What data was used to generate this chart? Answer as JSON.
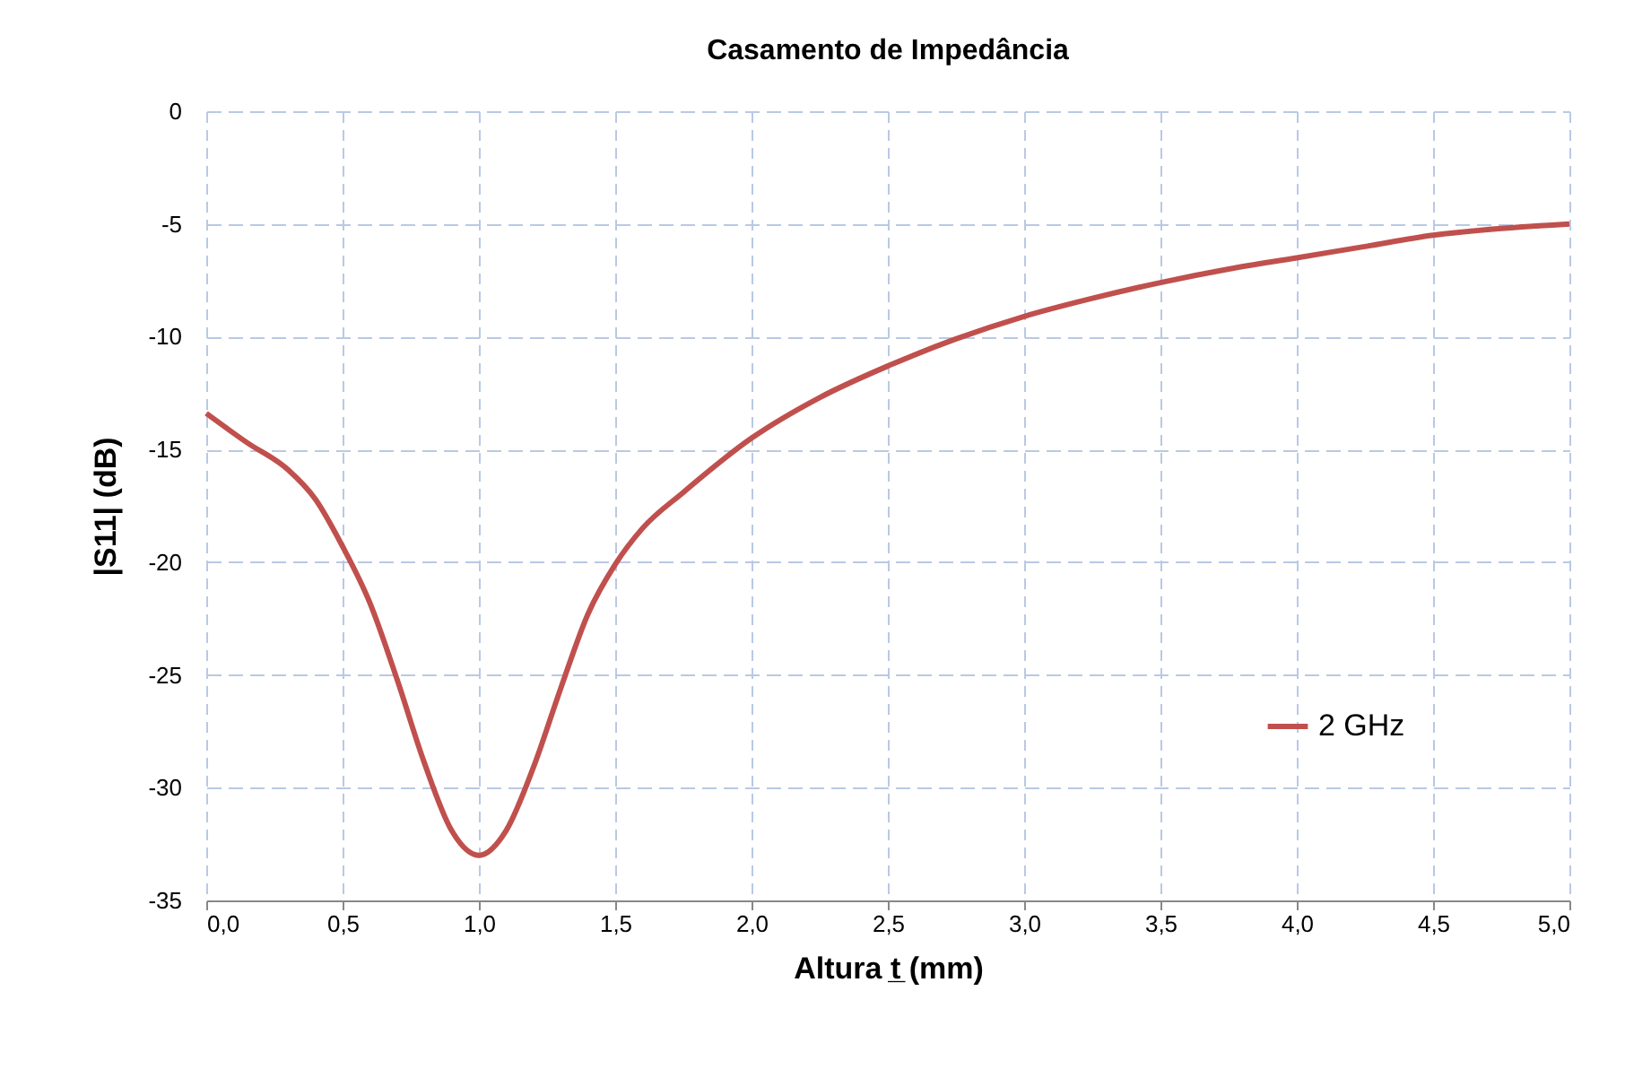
{
  "chart_data": {
    "type": "line",
    "title": "Casamento de Impedância",
    "xlabel": "Altura t̲ (mm)",
    "ylabel": "|S11| (dB)",
    "x": [
      0,
      0.15,
      0.3,
      0.4,
      0.5,
      0.6,
      0.7,
      0.8,
      0.9,
      1.0,
      1.1,
      1.2,
      1.3,
      1.4,
      1.5,
      1.6,
      1.75,
      2.0,
      2.25,
      2.5,
      2.75,
      3.0,
      3.25,
      3.5,
      3.75,
      4.0,
      4.25,
      4.5,
      4.75,
      5.0
    ],
    "series": [
      {
        "name": "2 GHz",
        "color": "#c0504d",
        "values": [
          -13.4,
          -14.7,
          -15.9,
          -17.2,
          -19.3,
          -21.8,
          -25.2,
          -28.9,
          -31.9,
          -33.0,
          -31.9,
          -29.1,
          -25.6,
          -22.3,
          -20.1,
          -18.5,
          -16.9,
          -14.5,
          -12.7,
          -11.3,
          -10.1,
          -9.1,
          -8.3,
          -7.6,
          -7.0,
          -6.5,
          -6.0,
          -5.5,
          -5.2,
          -5.0
        ]
      }
    ],
    "xlim": [
      0,
      5
    ],
    "xticks": [
      {
        "value": 0,
        "label": "0,0"
      },
      {
        "value": 0.5,
        "label": "0,5"
      },
      {
        "value": 1,
        "label": "1,0"
      },
      {
        "value": 1.5,
        "label": "1,5"
      },
      {
        "value": 2,
        "label": "2,0"
      },
      {
        "value": 2.5,
        "label": "2,5"
      },
      {
        "value": 3,
        "label": "3,0"
      },
      {
        "value": 3.5,
        "label": "3,5"
      },
      {
        "value": 4,
        "label": "4,0"
      },
      {
        "value": 4.5,
        "label": "4,5"
      },
      {
        "value": 5,
        "label": "5,0"
      }
    ],
    "ylim": [
      -35,
      0
    ],
    "yticks": [
      -35,
      -30,
      -25,
      -20,
      -15,
      -10,
      -5,
      0
    ],
    "grid": true,
    "legend": "right",
    "marker": "none",
    "line_style": "solid"
  }
}
